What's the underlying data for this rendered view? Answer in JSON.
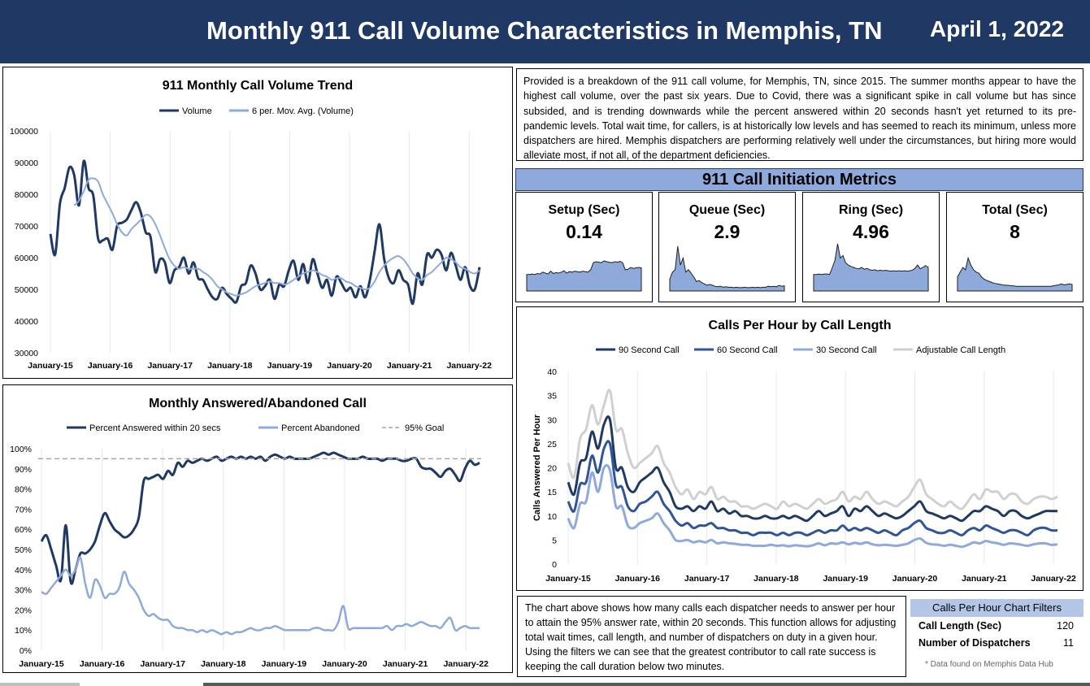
{
  "header": {
    "title": "Monthly 911 Call Volume Characteristics in Memphis, TN",
    "date": "April 1, 2022"
  },
  "description": "Provided is a breakdown of the 911 call volume, for Memphis, TN, since 2015. The summer months appear to have the highest call volume, over the past six years. Due to Covid, there was a significant spike in call volume but has since subsided, and is trending downwards while the percent answered within 20 seconds hasn't yet returned to its pre-pandemic levels. Total wait time, for callers, is at historically low levels and has seemed to reach its minimum, unless more dispatchers are hired. Memphis dispatchers are performing relatively well under the circumstances, but hiring more would alleviate most, if not all, of the department deficiencies.",
  "metrics": {
    "title": "911 Call Initiation Metrics",
    "cards": [
      {
        "label": "Setup (Sec)",
        "value": "0.14",
        "profile": [
          0.35,
          0.35,
          0.36,
          0.35,
          0.37,
          0.36,
          0.4,
          0.38,
          0.36,
          0.42,
          0.37,
          0.39,
          0.38,
          0.4,
          0.43,
          0.38,
          0.41,
          0.4,
          0.42,
          0.41,
          0.4,
          0.42,
          0.41,
          0.4,
          0.45,
          0.6,
          0.62,
          0.61,
          0.6,
          0.64,
          0.62,
          0.61,
          0.6,
          0.62,
          0.61,
          0.63,
          0.6,
          0.45,
          0.46,
          0.5,
          0.48,
          0.49,
          0.5,
          0.49
        ]
      },
      {
        "label": "Queue (Sec)",
        "value": "2.9",
        "profile": [
          0.25,
          0.4,
          0.45,
          0.95,
          0.55,
          0.7,
          0.4,
          0.45,
          0.38,
          0.3,
          0.2,
          0.22,
          0.18,
          0.15,
          0.12,
          0.14,
          0.12,
          0.1,
          0.09,
          0.1,
          0.08,
          0.09,
          0.08,
          0.08,
          0.07,
          0.08,
          0.07,
          0.07,
          0.08,
          0.07,
          0.07,
          0.08,
          0.07,
          0.08,
          0.07,
          0.08,
          0.08,
          0.1,
          0.09,
          0.1,
          0.09,
          0.12,
          0.1,
          0.11
        ]
      },
      {
        "label": "Ring (Sec)",
        "value": "4.96",
        "profile": [
          0.35,
          0.35,
          0.36,
          0.35,
          0.36,
          0.36,
          0.35,
          0.5,
          0.65,
          1.0,
          0.7,
          0.75,
          0.6,
          0.55,
          0.52,
          0.5,
          0.48,
          0.47,
          0.5,
          0.46,
          0.48,
          0.45,
          0.44,
          0.45,
          0.43,
          0.44,
          0.43,
          0.44,
          0.43,
          0.42,
          0.43,
          0.42,
          0.43,
          0.42,
          0.43,
          0.42,
          0.43,
          0.44,
          0.48,
          0.55,
          0.47,
          0.5,
          0.54,
          0.5
        ]
      },
      {
        "label": "Total (Sec)",
        "value": "8",
        "profile": [
          0.3,
          0.4,
          0.5,
          0.45,
          0.7,
          0.55,
          0.45,
          0.4,
          0.38,
          0.3,
          0.25,
          0.22,
          0.2,
          0.18,
          0.16,
          0.15,
          0.14,
          0.13,
          0.12,
          0.12,
          0.11,
          0.11,
          0.1,
          0.1,
          0.1,
          0.1,
          0.1,
          0.1,
          0.1,
          0.1,
          0.1,
          0.1,
          0.1,
          0.1,
          0.1,
          0.1,
          0.11,
          0.12,
          0.13,
          0.15,
          0.13,
          0.14,
          0.15,
          0.14
        ]
      }
    ]
  },
  "note": "The chart above shows how many calls each dispatcher needs to answer per hour to attain the 95% answer rate, within 20 seconds. This function allows for adjusting total wait times, call length, and number of dispatchers on duty in a given hour. Using the filters we can see that the greatest contributor to call rate success is keeping the call duration below two minutes.",
  "filters": {
    "title": "Calls Per Hour Chart Filters",
    "rows": [
      {
        "label": "Call Length (Sec)",
        "value": "120"
      },
      {
        "label": "Number of Dispatchers",
        "value": "11"
      }
    ]
  },
  "footnote": "* Data found on Memphis Data Hub",
  "chart_data": [
    {
      "type": "line",
      "title": "911 Monthly Call Volume Trend",
      "ylim": [
        30000,
        100000
      ],
      "yticks": [
        "100000",
        "90000",
        "80000",
        "70000",
        "60000",
        "50000",
        "40000",
        "30000"
      ],
      "xticks": [
        "January-15",
        "January-16",
        "January-17",
        "January-18",
        "January-19",
        "January-20",
        "January-21",
        "January-22"
      ],
      "grid": "vertical",
      "legend_position": "top",
      "series": [
        {
          "name": "Volume",
          "color": "#1f3864",
          "values": [
            67500,
            61000,
            77000,
            82000,
            88500,
            86000,
            76500,
            90500,
            82000,
            79500,
            66000,
            65500,
            66000,
            62500,
            70000,
            71000,
            72000,
            75000,
            77500,
            74000,
            68000,
            66500,
            55500,
            59500,
            58500,
            52000,
            56000,
            57000,
            60000,
            55000,
            58500,
            53500,
            53000,
            50000,
            47500,
            47000,
            50500,
            48500,
            47000,
            46000,
            51000,
            52000,
            57500,
            55000,
            50000,
            51000,
            53000,
            47000,
            51500,
            51000,
            56000,
            59000,
            53000,
            58000,
            52000,
            59500,
            55000,
            50500,
            53000,
            48000,
            54000,
            52000,
            49500,
            50500,
            47500,
            51000,
            47500,
            53000,
            62000,
            70500,
            59500,
            53500,
            52000,
            56000,
            53000,
            51500,
            45500,
            55000,
            51500,
            61000,
            60000,
            62500,
            61000,
            56000,
            61500,
            57500,
            53000,
            57000,
            51000,
            50000,
            57000
          ]
        },
        {
          "name": "6 per. Mov. Avg. (Volume)",
          "color": "#8eaadb",
          "values": [
            null,
            null,
            null,
            null,
            null,
            76500,
            78000,
            81000,
            84500,
            85000,
            84000,
            80000,
            77000,
            74000,
            70500,
            68000,
            67000,
            69000,
            70500,
            72000,
            73500,
            73000,
            70500,
            67000,
            63000,
            59500,
            57500,
            56500,
            57000,
            56500,
            56500,
            56500,
            55500,
            54500,
            53000,
            51000,
            50000,
            49000,
            48500,
            48000,
            48500,
            49000,
            50000,
            51000,
            51500,
            52000,
            52500,
            52000,
            52000,
            51500,
            52000,
            53000,
            54000,
            55000,
            55500,
            56000,
            55500,
            54500,
            54000,
            53000,
            53500,
            53500,
            52500,
            52000,
            51000,
            50500,
            50000,
            50500,
            52500,
            55500,
            57500,
            59000,
            60000,
            60500,
            59500,
            57500,
            55000,
            53500,
            53000,
            54500,
            55500,
            57000,
            58500,
            60000,
            59500,
            58500,
            57000,
            56500,
            55500,
            55000,
            56000
          ]
        }
      ]
    },
    {
      "type": "line",
      "title": "Monthly Answered/Abandoned Call",
      "ylim": [
        0,
        100
      ],
      "yticks": [
        "100%",
        "90%",
        "80%",
        "70%",
        "60%",
        "50%",
        "40%",
        "30%",
        "20%",
        "10%",
        "0%"
      ],
      "xticks": [
        "January-15",
        "January-16",
        "January-17",
        "January-18",
        "January-19",
        "January-20",
        "January-21",
        "January-22"
      ],
      "grid": "vertical",
      "legend_position": "top",
      "series": [
        {
          "name": "Percent Answered within 20 secs",
          "color": "#1f3864",
          "values": [
            54,
            57,
            50,
            42,
            35,
            62,
            34,
            40,
            48,
            48,
            50,
            54,
            62,
            68,
            64,
            60,
            58,
            56,
            57,
            60,
            66,
            84,
            85,
            86,
            87,
            85,
            89,
            87,
            93,
            91,
            94,
            93,
            94,
            95,
            94,
            95,
            96,
            94,
            95,
            96,
            95,
            96,
            95,
            96,
            95,
            96,
            94,
            96,
            97,
            96,
            95,
            96,
            95,
            95,
            95,
            95,
            96,
            97,
            98,
            97,
            98,
            97,
            96,
            95,
            95,
            95,
            96,
            95,
            95,
            95,
            94,
            95,
            95,
            95,
            94,
            94,
            95,
            95,
            91,
            90,
            90,
            88,
            86,
            89,
            90,
            87,
            84,
            90,
            94,
            92,
            93
          ]
        },
        {
          "name": "Percent Abandoned",
          "color": "#8eaadb",
          "values": [
            29,
            28,
            31,
            34,
            37,
            40,
            37,
            40,
            46,
            33,
            26,
            35,
            32,
            26,
            28,
            28,
            31,
            39,
            33,
            30,
            26,
            20,
            17,
            18,
            16,
            15,
            15,
            12,
            11,
            11,
            10,
            10,
            9,
            10,
            9,
            10,
            9,
            8,
            9,
            8,
            9,
            9,
            10,
            11,
            10,
            10,
            11,
            11,
            12,
            11,
            10,
            10,
            10,
            10,
            10,
            10,
            11,
            11,
            10,
            10,
            10,
            14,
            22,
            11,
            11,
            11,
            11,
            11,
            11,
            11,
            11,
            12,
            10,
            12,
            12,
            13,
            12,
            13,
            14,
            13,
            12,
            12,
            11,
            14,
            16,
            10,
            11,
            12,
            11,
            11,
            11
          ]
        },
        {
          "name": "95% Goal",
          "color": "#a6a6a6",
          "dashed": true,
          "values": [
            95,
            95
          ]
        }
      ]
    },
    {
      "type": "line",
      "title": "Calls Per Hour by Call Length",
      "ylabel": "Calls Answered Per Hour",
      "ylim": [
        0,
        40
      ],
      "yticks": [
        "40",
        "35",
        "30",
        "25",
        "20",
        "15",
        "10",
        "5",
        "0"
      ],
      "xticks": [
        "January-15",
        "January-16",
        "January-17",
        "January-18",
        "January-19",
        "January-20",
        "January-21",
        "January-22"
      ],
      "grid": "vertical",
      "legend_position": "top",
      "series": [
        {
          "name": "90 Second Call",
          "color": "#1f3864",
          "values": [
            17,
            14.5,
            21,
            22,
            27.5,
            24,
            29,
            30,
            20,
            20,
            16,
            15,
            17,
            18,
            19,
            20,
            17,
            15,
            12,
            11.5,
            12,
            11,
            12,
            11.5,
            13,
            11,
            11.5,
            10.5,
            11,
            10,
            10,
            9.5,
            9.5,
            10,
            9.5,
            9.5,
            10,
            9.5,
            10,
            9.5,
            9,
            10,
            11,
            10,
            10.5,
            11,
            12,
            10,
            11.5,
            11,
            12,
            11,
            10,
            10.5,
            10,
            9.5,
            10,
            11,
            12,
            13,
            11,
            10.5,
            10,
            9.5,
            10,
            9.5,
            9,
            10,
            11,
            11,
            12,
            11.5,
            11,
            10,
            11,
            11,
            10,
            9.5,
            10,
            10.5,
            11,
            11,
            11
          ]
        },
        {
          "name": "60 Second Call",
          "color": "#2f5597",
          "values": [
            13,
            11,
            16.5,
            17,
            22.5,
            19,
            24,
            25,
            16.5,
            16,
            12,
            11,
            12.5,
            13,
            14,
            15,
            12.5,
            11,
            9,
            8,
            8.5,
            7.5,
            8,
            8,
            8.5,
            7.5,
            7.5,
            7,
            7,
            6.5,
            6.5,
            6,
            6.5,
            6.5,
            6.5,
            6,
            6.5,
            6,
            6.5,
            6.5,
            6,
            6.5,
            7,
            6.5,
            7,
            7,
            8,
            7,
            7.5,
            7,
            7.5,
            7,
            6.5,
            7,
            6.5,
            6,
            7,
            7.5,
            8.5,
            9,
            7.5,
            7,
            6.5,
            6.5,
            7,
            6.5,
            6,
            7,
            7.5,
            7,
            8,
            7.5,
            7,
            6.5,
            7,
            7,
            6.5,
            6,
            7,
            7.5,
            7.5,
            7,
            7
          ]
        },
        {
          "name": "30 Second Call",
          "color": "#8eaadb",
          "values": [
            9.5,
            7.5,
            12.5,
            13,
            19,
            15,
            20,
            19.5,
            12,
            12,
            8,
            7.5,
            8.5,
            9,
            9.5,
            10.5,
            8.5,
            7,
            5,
            4.8,
            5,
            4.5,
            4.8,
            4.5,
            5,
            4.3,
            4.5,
            4.3,
            4.2,
            4,
            4,
            3.8,
            3.8,
            3.8,
            4,
            3.8,
            3.9,
            3.7,
            3.9,
            3.8,
            3.7,
            3.9,
            4.3,
            3.9,
            4.3,
            4.2,
            4.5,
            4.1,
            4.4,
            4.2,
            4.5,
            4.1,
            3.9,
            4,
            3.9,
            3.8,
            4,
            4.3,
            5,
            5.3,
            4.4,
            4.1,
            4,
            3.8,
            4,
            3.8,
            3.6,
            4,
            4.5,
            4.3,
            4.8,
            4.5,
            4.3,
            4,
            4.3,
            4.2,
            4,
            3.8,
            4.1,
            4.3,
            4.3,
            4,
            4.1
          ]
        },
        {
          "name": "Adjustable Call Length",
          "color": "#d0d0d0",
          "values": [
            21,
            18,
            26,
            28,
            33,
            29,
            33,
            36,
            28,
            28,
            23,
            20,
            21,
            22,
            23,
            24.5,
            21,
            19,
            16,
            14.5,
            15.5,
            13.5,
            15,
            14.5,
            16,
            13.5,
            14,
            13,
            13,
            12,
            12,
            11.5,
            12,
            12.5,
            12,
            11.5,
            13,
            12,
            12.5,
            12,
            11.5,
            12.5,
            13.5,
            12.5,
            13,
            13.5,
            15,
            13,
            14,
            13.5,
            15,
            13.5,
            12.5,
            13,
            12.5,
            12,
            13,
            14,
            16,
            17.5,
            14.5,
            13.5,
            12.5,
            12,
            13,
            12,
            11.5,
            13,
            14.5,
            13.5,
            15.5,
            15,
            15,
            13.5,
            14.5,
            14.5,
            13,
            12.5,
            13.5,
            14,
            14,
            13.5,
            14
          ]
        }
      ]
    }
  ]
}
